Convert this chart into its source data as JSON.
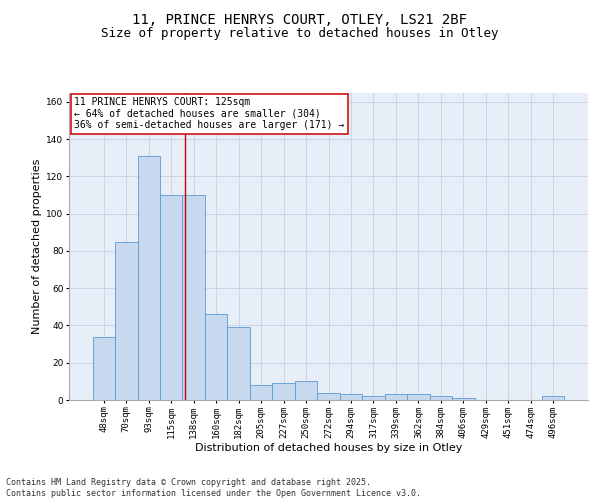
{
  "title_line1": "11, PRINCE HENRYS COURT, OTLEY, LS21 2BF",
  "title_line2": "Size of property relative to detached houses in Otley",
  "xlabel": "Distribution of detached houses by size in Otley",
  "ylabel": "Number of detached properties",
  "categories": [
    "48sqm",
    "70sqm",
    "93sqm",
    "115sqm",
    "138sqm",
    "160sqm",
    "182sqm",
    "205sqm",
    "227sqm",
    "250sqm",
    "272sqm",
    "294sqm",
    "317sqm",
    "339sqm",
    "362sqm",
    "384sqm",
    "406sqm",
    "429sqm",
    "451sqm",
    "474sqm",
    "496sqm"
  ],
  "values": [
    34,
    85,
    131,
    110,
    110,
    46,
    39,
    8,
    9,
    10,
    4,
    3,
    2,
    3,
    3,
    2,
    1,
    0,
    0,
    0,
    2
  ],
  "bar_color": "#c8d8ef",
  "bar_edge_color": "#5b9bd5",
  "grid_color": "#c8d0e0",
  "background_color": "#e8eef8",
  "annotation_line1": "11 PRINCE HENRYS COURT: 125sqm",
  "annotation_line2": "← 64% of detached houses are smaller (304)",
  "annotation_line3": "36% of semi-detached houses are larger (171) →",
  "annotation_box_color": "#ffffff",
  "annotation_box_edge_color": "#cc0000",
  "red_line_x": 3.62,
  "ylim": [
    0,
    165
  ],
  "yticks": [
    0,
    20,
    40,
    60,
    80,
    100,
    120,
    140,
    160
  ],
  "footer_text": "Contains HM Land Registry data © Crown copyright and database right 2025.\nContains public sector information licensed under the Open Government Licence v3.0.",
  "title_fontsize": 10,
  "subtitle_fontsize": 9,
  "axis_label_fontsize": 8,
  "tick_fontsize": 6.5,
  "annotation_fontsize": 7,
  "footer_fontsize": 6
}
